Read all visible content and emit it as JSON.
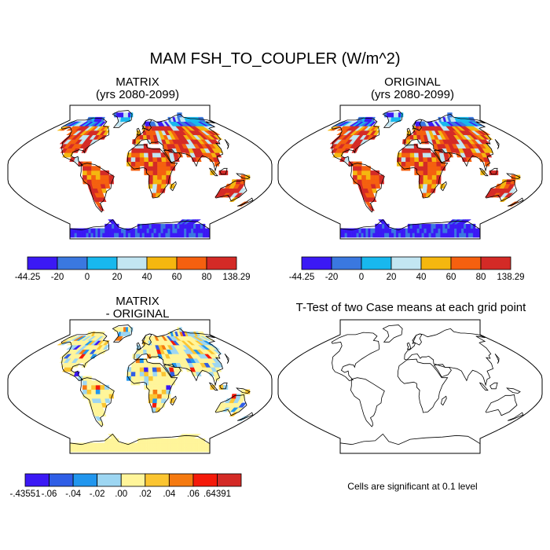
{
  "figure": {
    "title": "MAM FSH_TO_COUPLER (W/m^2)",
    "panels": [
      {
        "id": "matrix",
        "title_line1": "MATRIX",
        "title_line2": "(yrs 2080-2099)"
      },
      {
        "id": "original",
        "title_line1": "ORIGINAL",
        "title_line2": "(yrs 2080-2099)"
      },
      {
        "id": "difference",
        "title_line1": "MATRIX",
        "title_line2": "- ORIGINAL"
      },
      {
        "id": "ttest",
        "title_line1": "T-Test of two Case means at each grid point"
      }
    ],
    "note": "Cells are significant at 0.1 level"
  },
  "colorbars": {
    "field": {
      "labels": [
        "-44.25",
        "-20",
        "0",
        "20",
        "40",
        "60",
        "80",
        "138.29"
      ],
      "colors": [
        "#3b19f5",
        "#3a78e0",
        "#18b8ee",
        "#c2e6f2",
        "#f5b70f",
        "#f5600f",
        "#d42a26"
      ]
    },
    "diff": {
      "labels": [
        "-.43551",
        "-.06",
        "-.04",
        "-.02",
        ".00",
        ".02",
        ".04",
        ".06",
        ".64391"
      ],
      "colors": [
        "#3b19f5",
        "#2f5ee6",
        "#2196ee",
        "#9dd6f2",
        "#fff59a",
        "#fbc531",
        "#f57a10",
        "#f51a0a",
        "#d42a26"
      ]
    }
  },
  "map": {
    "projection": "Robinson",
    "land_colors_field": [
      "#f5600f",
      "#d42a26",
      "#f5b70f",
      "#c2e6f2",
      "#18b8ee",
      "#3a78e0",
      "#3b19f5"
    ],
    "land_colors_diff": [
      "#fff59a",
      "#9dd6f2",
      "#fbc531",
      "#2196ee",
      "#f57a10",
      "#2f5ee6",
      "#f51a0a",
      "#3b19f5"
    ]
  }
}
